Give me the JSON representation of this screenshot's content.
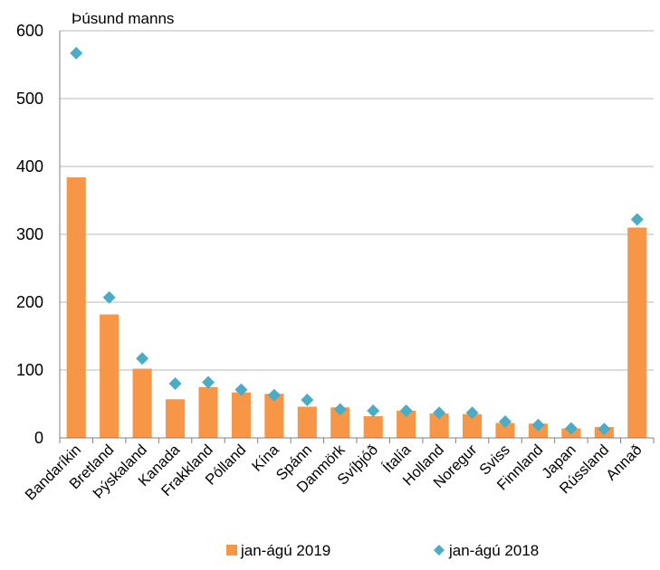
{
  "chart_data": {
    "type": "bar",
    "unit_label": "Þúsund manns",
    "categories": [
      "Bandaríkin",
      "Bretland",
      "Þýskaland",
      "Kanada",
      "Frakkland",
      "Pólland",
      "Kína",
      "Spánn",
      "Danmörk",
      "Svíþjóð",
      "Ítalía",
      "Holland",
      "Noregur",
      "Sviss",
      "Finnland",
      "Japan",
      "Rússland",
      "Annað"
    ],
    "series": [
      {
        "name": "jan-ágú 2019",
        "type": "bar",
        "color": "#f79646",
        "values": [
          384,
          182,
          102,
          57,
          75,
          67,
          65,
          46,
          45,
          32,
          40,
          36,
          35,
          22,
          21,
          14,
          16,
          310
        ]
      },
      {
        "name": "jan-ágú 2018",
        "type": "marker",
        "marker": "diamond",
        "color": "#4bacc6",
        "values": [
          567,
          207,
          117,
          80,
          82,
          71,
          63,
          56,
          42,
          40,
          40,
          37,
          37,
          24,
          19,
          14,
          13,
          322
        ]
      }
    ],
    "ylim": [
      0,
      600
    ],
    "yticks": [
      0,
      100,
      200,
      300,
      400,
      500,
      600
    ],
    "grid": true,
    "legend": "bottom"
  }
}
